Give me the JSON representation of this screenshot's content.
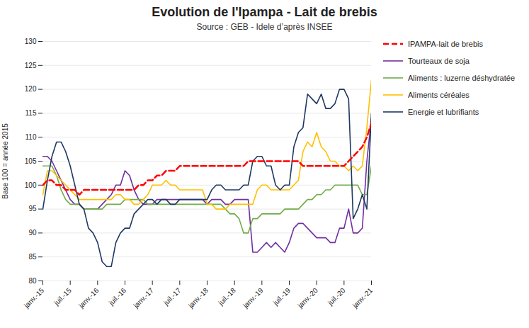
{
  "chart_data": {
    "type": "line",
    "title": "Evolution de l'Ipampa - Lait de brebis",
    "subtitle": "Source : GEB - Idele d’après INSEE",
    "ylabel": "Base 100 = année 2015",
    "categories": [
      "janv.-15",
      null,
      null,
      null,
      null,
      null,
      "juil.-15",
      null,
      null,
      null,
      null,
      null,
      "janv.-16",
      null,
      null,
      null,
      null,
      null,
      "juil.-16",
      null,
      null,
      null,
      null,
      null,
      "janv.-17",
      null,
      null,
      null,
      null,
      null,
      "juil.-17",
      null,
      null,
      null,
      null,
      null,
      "janv.-18",
      null,
      null,
      null,
      null,
      null,
      "juil.-18",
      null,
      null,
      null,
      null,
      null,
      "janv.-19",
      null,
      null,
      null,
      null,
      null,
      "juil.-19",
      null,
      null,
      null,
      null,
      null,
      "janv.-20",
      null,
      null,
      null,
      null,
      null,
      "juil.-20",
      null,
      null,
      null,
      null,
      null,
      "janv.-21"
    ],
    "series": [
      {
        "name": "IPAMPA-lait de brebis",
        "color": "#FF0000",
        "line_style": "dashed",
        "values": [
          100,
          101,
          101,
          100,
          100,
          99,
          99,
          99,
          98,
          99,
          99,
          99,
          99,
          99,
          99,
          99,
          99,
          99,
          99,
          99,
          99,
          100,
          100,
          101,
          101,
          102,
          102,
          103,
          103,
          103,
          104,
          104,
          104,
          104,
          104,
          104,
          104,
          104,
          104,
          104,
          104,
          104,
          104,
          104,
          104,
          105,
          105,
          105,
          105,
          105,
          105,
          105,
          105,
          105,
          105,
          105,
          105,
          104,
          104,
          104,
          104,
          104,
          104,
          104,
          104,
          104,
          104,
          105,
          106,
          107,
          108,
          110,
          113
        ]
      },
      {
        "name": "Tourteaux de soja",
        "color": "#7030A0",
        "line_style": "solid",
        "values": [
          106,
          106,
          105,
          103,
          101,
          99,
          97,
          96,
          96,
          95,
          95,
          95,
          95,
          96,
          97,
          98,
          100,
          100,
          103,
          102,
          99,
          97,
          96,
          96,
          96,
          97,
          97,
          97,
          97,
          97,
          97,
          97,
          97,
          97,
          97,
          97,
          96,
          97,
          97,
          97,
          96,
          96,
          97,
          97,
          97,
          97,
          86,
          86,
          87,
          88,
          87,
          88,
          87,
          86,
          88,
          91,
          92,
          92,
          91,
          90,
          89,
          89,
          89,
          88,
          88,
          91,
          91,
          95,
          90,
          90,
          91,
          105,
          114
        ]
      },
      {
        "name": "Aliments : luzerne déshydratée",
        "color": "#70AD47",
        "line_style": "solid",
        "values": [
          104,
          104,
          104,
          102,
          99,
          97,
          96,
          96,
          96,
          95,
          95,
          95,
          95,
          95,
          96,
          96,
          96,
          96,
          97,
          97,
          97,
          97,
          97,
          96,
          96,
          96,
          96,
          96,
          96,
          96,
          96,
          96,
          96,
          96,
          96,
          96,
          96,
          96,
          96,
          96,
          95,
          94,
          94,
          93,
          90,
          90,
          93,
          93,
          94,
          94,
          94,
          94,
          94,
          95,
          95,
          95,
          95,
          96,
          97,
          97,
          98,
          98,
          99,
          99,
          100,
          100,
          100,
          100,
          100,
          100,
          98,
          98,
          104
        ]
      },
      {
        "name": "Aliments céréales",
        "color": "#FFC000",
        "line_style": "solid",
        "values": [
          98,
          103,
          103,
          102,
          101,
          100,
          99,
          98,
          97,
          97,
          97,
          97,
          97,
          97,
          97,
          97,
          98,
          98,
          97,
          97,
          96,
          96,
          97,
          98,
          100,
          100,
          100,
          101,
          100,
          100,
          99,
          99,
          99,
          99,
          99,
          99,
          96,
          96,
          95,
          95,
          95,
          96,
          96,
          96,
          96,
          96,
          96,
          99,
          100,
          100,
          99,
          99,
          99,
          99,
          99,
          100,
          101,
          107,
          109,
          108,
          111,
          108,
          107,
          105,
          105,
          104,
          104,
          103,
          104,
          103,
          104,
          112,
          122
        ]
      },
      {
        "name": "Energie et lubrifiants",
        "color": "#1F3864",
        "line_style": "solid",
        "values": [
          95,
          101,
          106,
          109,
          109,
          107,
          104,
          100,
          96,
          95,
          91,
          90,
          88,
          84,
          83,
          83,
          88,
          90,
          91,
          91,
          94,
          95,
          96,
          97,
          97,
          96,
          97,
          97,
          96,
          96,
          97,
          97,
          97,
          97,
          97,
          97,
          97,
          99,
          100,
          100,
          99,
          99,
          99,
          99,
          100,
          100,
          105,
          106,
          106,
          104,
          104,
          100,
          99,
          100,
          100,
          108,
          111,
          112,
          119,
          118,
          117,
          119,
          116,
          116,
          117,
          120,
          120,
          118,
          93,
          95,
          98,
          95,
          115
        ]
      }
    ],
    "ylim": [
      80,
      130
    ],
    "yticks": [
      80,
      85,
      90,
      95,
      100,
      105,
      110,
      115,
      120,
      125,
      130
    ],
    "grid": true,
    "legend": "right"
  }
}
